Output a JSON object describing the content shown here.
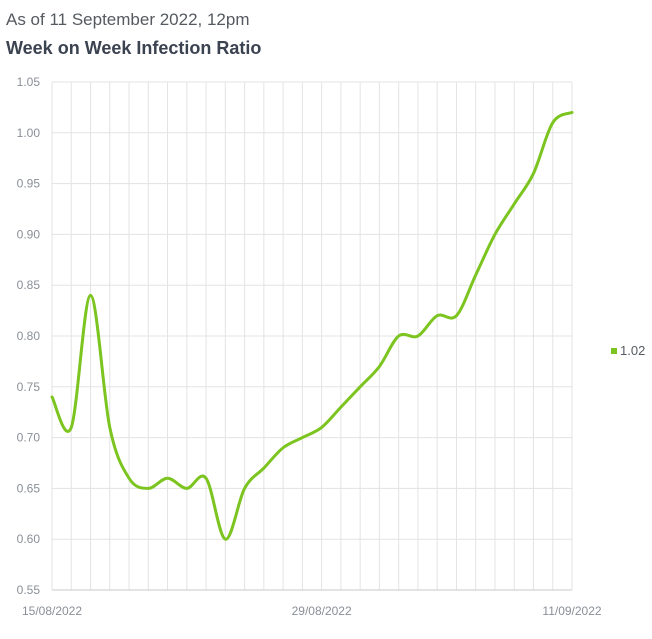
{
  "header": {
    "subtitle": "As of 11 September 2022, 12pm",
    "title": "Week on Week Infection Ratio"
  },
  "colors": {
    "line": "#7cc41f",
    "grid": "#e3e3e3",
    "axis": "#c8c8c8"
  },
  "chart_data": {
    "type": "line",
    "title": "Week on Week Infection Ratio",
    "subtitle": "As of 11 September 2022, 12pm",
    "x": [
      "15/08/2022",
      "16/08/2022",
      "17/08/2022",
      "18/08/2022",
      "19/08/2022",
      "20/08/2022",
      "21/08/2022",
      "22/08/2022",
      "23/08/2022",
      "24/08/2022",
      "25/08/2022",
      "26/08/2022",
      "27/08/2022",
      "28/08/2022",
      "29/08/2022",
      "30/08/2022",
      "31/08/2022",
      "01/09/2022",
      "02/09/2022",
      "03/09/2022",
      "04/09/2022",
      "05/09/2022",
      "06/09/2022",
      "07/09/2022",
      "08/09/2022",
      "09/09/2022",
      "10/09/2022",
      "11/09/2022"
    ],
    "x_tick_labels": [
      "15/08/2022",
      "29/08/2022",
      "11/09/2022"
    ],
    "series": [
      {
        "name": "1.02",
        "values": [
          0.74,
          0.71,
          0.84,
          0.71,
          0.66,
          0.65,
          0.66,
          0.65,
          0.66,
          0.6,
          0.65,
          0.67,
          0.69,
          0.7,
          0.71,
          0.73,
          0.75,
          0.77,
          0.8,
          0.8,
          0.82,
          0.82,
          0.86,
          0.9,
          0.93,
          0.96,
          1.01,
          1.02
        ]
      }
    ],
    "ylim": [
      0.55,
      1.05
    ],
    "yticks": [
      "0.55",
      "0.60",
      "0.65",
      "0.70",
      "0.75",
      "0.80",
      "0.85",
      "0.90",
      "0.95",
      "1.00",
      "1.05"
    ],
    "xlabel": "",
    "ylabel": "",
    "grid": true,
    "legend": "right"
  }
}
